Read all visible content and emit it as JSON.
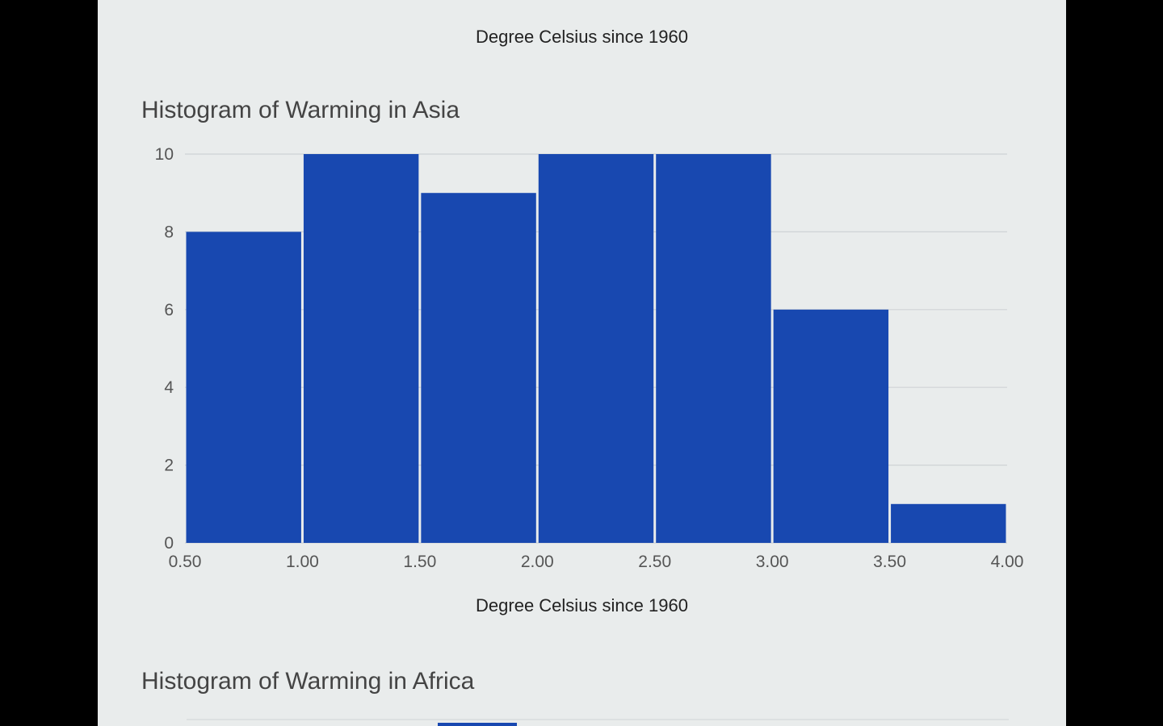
{
  "previous_chart": {
    "xlabel": "Degree Celsius since 1960"
  },
  "next_chart": {
    "title": "Histogram of Warming in Africa"
  },
  "colors": {
    "bar": "#1848b0",
    "grid": "#cfd3d6",
    "background": "#e9ecec"
  },
  "chart_data": {
    "type": "bar",
    "title": "Histogram of Warming in Asia",
    "xlabel": "Degree Celsius since 1960",
    "ylabel": "",
    "bin_edges": [
      0.5,
      1.0,
      1.5,
      2.0,
      2.5,
      3.0,
      3.5,
      4.0
    ],
    "x_tick_labels": [
      "0.50",
      "1.00",
      "1.50",
      "2.00",
      "2.50",
      "3.00",
      "3.50",
      "4.00"
    ],
    "values": [
      8,
      10,
      9,
      10,
      10,
      6,
      1
    ],
    "ylim": [
      0,
      10
    ],
    "y_ticks": [
      0,
      2,
      4,
      6,
      8,
      10
    ],
    "grid": true,
    "legend": "none"
  }
}
